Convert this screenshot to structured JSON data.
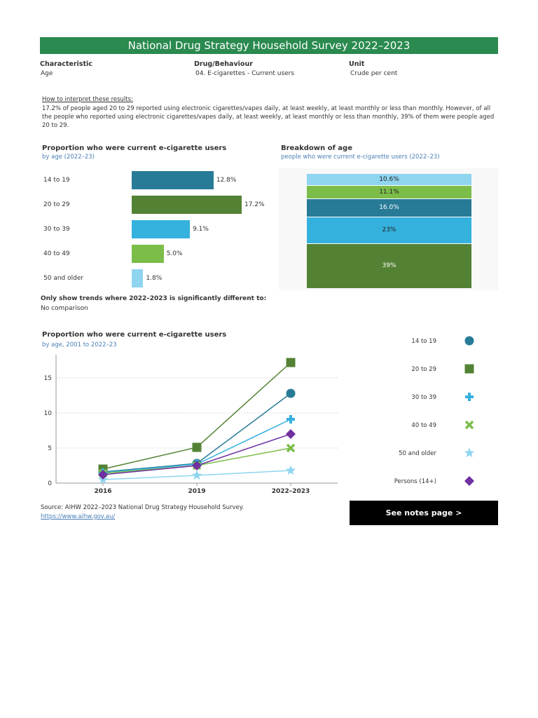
{
  "header": {
    "title": "National Drug Strategy Household Survey 2022–2023",
    "characteristic_label": "Characteristic",
    "characteristic_value": "Age",
    "drug_label": "Drug/Behaviour",
    "drug_value": "04. E-cigarettes - Current users",
    "unit_label": "Unit",
    "unit_value": "Crude per cent"
  },
  "interpretation": {
    "title": "How to interpret these results:",
    "text": "17.2% of people aged 20 to 29 reported using electronic cigarettes/vapes daily, at least weekly, at least monthly or less than monthly. However, of all the people who reported using electronic cigarettes/vapes daily, at least weekly, at least monthly or less than monthly, 39% of them were people aged 20 to 29."
  },
  "comparison": {
    "label": "Only show trends where 2022–2023 is significantly different to:",
    "value": "No comparison"
  },
  "colors": {
    "banner": "#2a8a4f",
    "teal": "#287b96",
    "green": "#548235",
    "sky": "#35b1de",
    "lime": "#7cbd4a",
    "pale": "#8fd5f0",
    "purple": "#7030a0"
  },
  "chart_data": [
    {
      "type": "bar",
      "title": "Proportion who were current e-cigarette users",
      "subtitle": "by age (2022–23)",
      "categories": [
        "14 to 19",
        "20 to 29",
        "30 to 39",
        "40 to 49",
        "50 and older"
      ],
      "values": [
        12.8,
        17.2,
        9.1,
        5.0,
        1.8
      ],
      "labels": [
        "12.8%",
        "17.2%",
        "9.1%",
        "5.0%",
        "1.8%"
      ],
      "colors": [
        "#287b96",
        "#548235",
        "#35b1de",
        "#7cbd4a",
        "#8fd5f0"
      ],
      "orientation": "horizontal"
    },
    {
      "type": "bar",
      "title": "Breakdown of age",
      "subtitle": "people who were current e-cigarette users (2022–23)",
      "stacked": true,
      "segments": [
        {
          "category": "50 and older",
          "value": 10.6,
          "label": "10.6%",
          "color": "#8fd5f0"
        },
        {
          "category": "40 to 49",
          "value": 11.1,
          "label": "11.1%",
          "color": "#7cbd4a"
        },
        {
          "category": "30 to 39",
          "value": 16.0,
          "label": "16.0%",
          "color": "#287b96"
        },
        {
          "category": "14 to 19",
          "value": 23,
          "label": "23%",
          "color": "#35b1de"
        },
        {
          "category": "20 to 29",
          "value": 39,
          "label": "39%",
          "color": "#548235"
        }
      ]
    },
    {
      "type": "line",
      "title": "Proportion who were current e-cigarette users",
      "subtitle": "by age, 2001 to 2022–23",
      "x": [
        "2016",
        "2019",
        "2022–2023"
      ],
      "ylim": [
        0,
        18
      ],
      "yticks": [
        0,
        5,
        10,
        15
      ],
      "grid": true,
      "legend": "right",
      "series": [
        {
          "name": "14 to 19",
          "values": [
            1.6,
            2.8,
            12.8
          ],
          "color": "#287b96",
          "marker": "circle"
        },
        {
          "name": "20 to 29",
          "values": [
            2.0,
            5.1,
            17.2
          ],
          "color": "#548235",
          "marker": "square"
        },
        {
          "name": "30 to 39",
          "values": [
            1.5,
            2.7,
            9.1
          ],
          "color": "#35b1de",
          "marker": "plus"
        },
        {
          "name": "40 to 49",
          "values": [
            1.4,
            2.5,
            5.0
          ],
          "color": "#7cbd4a",
          "marker": "cross"
        },
        {
          "name": "50 and older",
          "values": [
            0.5,
            1.1,
            1.8
          ],
          "color": "#8fd5f0",
          "marker": "star"
        },
        {
          "name": "Persons (14+)",
          "values": [
            1.2,
            2.5,
            7.0
          ],
          "color": "#7030a0",
          "marker": "diamond"
        }
      ]
    }
  ],
  "source": {
    "text": "Source: AIHW  2022–2023 National Drug Strategy Household Survey.",
    "link": "https://www.aihw.gov.au/"
  },
  "notes_button": "See notes page >"
}
